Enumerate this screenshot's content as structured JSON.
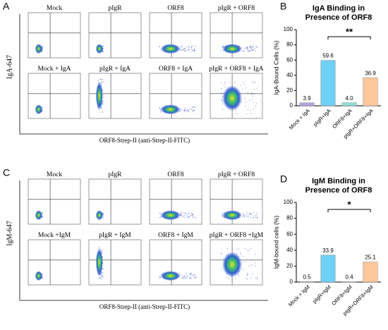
{
  "figure": {
    "panels": [
      {
        "letter": "A",
        "titles": [
          "Mock",
          "pIgR",
          "ORF8",
          "pIgR + ORF8",
          "Mock + IgA",
          "pIgR + IgA",
          "ORF8 + IgA",
          "pIgR + ORF8 + IgA"
        ],
        "ylabel": "IgA-647",
        "xlabel": "ORF8-Strep-II (anti-Strep-II-FITC)"
      },
      {
        "letter": "C",
        "titles": [
          "Mock",
          "pIgR",
          "ORF8",
          "pIgR + ORF8",
          "Mock +IgM",
          "pIgR + IgM",
          "ORF8 + IgM",
          "pIgR + ORF8 +IgM"
        ],
        "ylabel": "IgM-647",
        "xlabel": "ORF8-Strep-II (anti-Strep-II-FITC)"
      }
    ]
  },
  "chart_data": [
    {
      "type": "bar",
      "letter": "B",
      "title": [
        "IgA Binding in",
        "Presence of ORF8"
      ],
      "ylabel": "IgA-Bound Cells (%)",
      "categories": [
        "Mock + IgA",
        "pIgR+IgA",
        "ORF8+IgA",
        "pIgR+ORF8+IgA"
      ],
      "values": [
        3.9,
        59.6,
        4.0,
        36.9
      ],
      "value_labels": [
        "3.9",
        "59.6",
        "4.0",
        "36.9"
      ],
      "colors": [
        "#b7a3e0",
        "#6fd0f5",
        "#8ee0d8",
        "#ffc79a"
      ],
      "ylim": [
        0,
        100
      ],
      "yticks": [
        0,
        20,
        40,
        60,
        80,
        100
      ],
      "significance": [
        {
          "from": 1,
          "to": 3,
          "label": "**"
        }
      ]
    },
    {
      "type": "bar",
      "letter": "D",
      "title": [
        "IgM Binding in",
        "Presence of ORF8"
      ],
      "ylabel": "IgM-bound cells (%)",
      "categories": [
        "Mock + IgM",
        "pIgR+IgM",
        "ORF8+IgM",
        "pIgR+ORF8+IgM"
      ],
      "values": [
        0.5,
        33.9,
        0.4,
        25.1
      ],
      "value_labels": [
        "0.5",
        "33.9",
        "0.4",
        "25.1"
      ],
      "colors": [
        "#b7a3e0",
        "#6fd0f5",
        "#8ee0d8",
        "#ffc79a"
      ],
      "ylim": [
        0,
        100
      ],
      "yticks": [
        0,
        20,
        40,
        60,
        80,
        100
      ],
      "significance": [
        {
          "from": 1,
          "to": 3,
          "label": "*"
        }
      ]
    }
  ]
}
